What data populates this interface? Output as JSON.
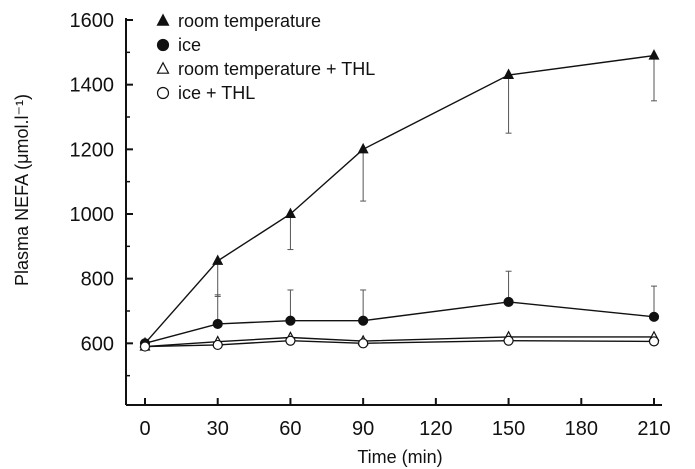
{
  "chart_data": {
    "type": "line",
    "title": "",
    "xlabel": "Time (min)",
    "ylabel": "Plasma NEFA (μmol.l⁻¹)",
    "xlim": [
      0,
      210
    ],
    "ylim": [
      400,
      1600
    ],
    "x_ticks": [
      "0",
      "30",
      "60",
      "90",
      "120",
      "150",
      "180",
      "210"
    ],
    "y_ticks": [
      "600",
      "800",
      "1000",
      "1200",
      "1400",
      "1600"
    ],
    "legend_position": "top-left",
    "grid": false,
    "series": [
      {
        "name": "room temperature",
        "marker": "triangle-filled",
        "x": [
          0,
          30,
          60,
          90,
          150,
          210
        ],
        "y": [
          600,
          855,
          1000,
          1200,
          1430,
          1490
        ],
        "error_up": [
          0,
          0,
          0,
          0,
          0,
          0
        ],
        "error_down": [
          0,
          110,
          110,
          160,
          180,
          140
        ]
      },
      {
        "name": "ice",
        "marker": "circle-filled",
        "x": [
          0,
          30,
          60,
          90,
          150,
          210
        ],
        "y": [
          600,
          660,
          670,
          670,
          728,
          682
        ],
        "error_up": [
          0,
          90,
          95,
          95,
          95,
          95
        ],
        "error_down": [
          0,
          0,
          0,
          0,
          0,
          0
        ]
      },
      {
        "name": "room temperature + THL",
        "marker": "triangle-open",
        "x": [
          0,
          30,
          60,
          90,
          150,
          210
        ],
        "y": [
          590,
          605,
          618,
          607,
          620,
          620
        ],
        "error_up": [
          0,
          0,
          0,
          0,
          0,
          0
        ],
        "error_down": [
          0,
          0,
          0,
          0,
          0,
          0
        ]
      },
      {
        "name": "ice + THL",
        "marker": "circle-open",
        "x": [
          0,
          30,
          60,
          90,
          150,
          210
        ],
        "y": [
          590,
          595,
          608,
          600,
          608,
          606
        ],
        "error_up": [
          0,
          0,
          0,
          0,
          0,
          0
        ],
        "error_down": [
          0,
          0,
          0,
          0,
          0,
          0
        ]
      }
    ]
  }
}
